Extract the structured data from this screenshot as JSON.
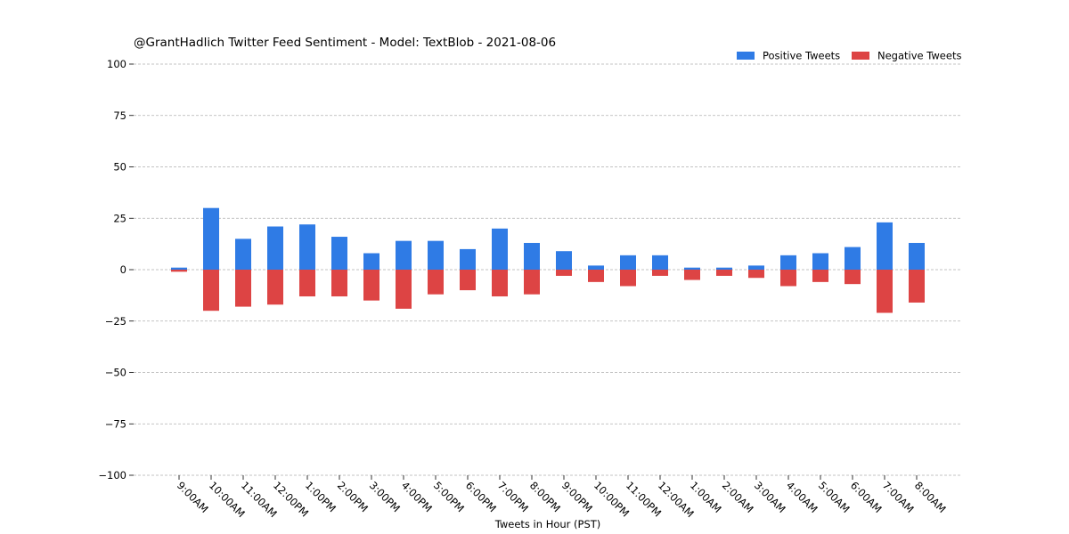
{
  "chart_data": {
    "type": "bar",
    "title": "@GrantHadlich Twitter Feed Sentiment - Model: TextBlob - 2021-08-06",
    "xlabel": "Tweets in Hour (PST)",
    "ylabel": "",
    "ylim": [
      -100,
      100
    ],
    "yticks": [
      100,
      75,
      50,
      25,
      0,
      -25,
      -50,
      -75,
      -100
    ],
    "ytick_labels": [
      "100",
      "75",
      "50",
      "25",
      "0",
      "−25",
      "−50",
      "−75",
      "−100"
    ],
    "grid": true,
    "legend_position": "top-right",
    "categories": [
      "9:00AM",
      "10:00AM",
      "11:00AM",
      "12:00PM",
      "1:00PM",
      "2:00PM",
      "3:00PM",
      "4:00PM",
      "5:00PM",
      "6:00PM",
      "7:00PM",
      "8:00PM",
      "9:00PM",
      "10:00PM",
      "11:00PM",
      "12:00AM",
      "1:00AM",
      "2:00AM",
      "3:00AM",
      "4:00AM",
      "5:00AM",
      "6:00AM",
      "7:00AM",
      "8:00AM"
    ],
    "series": [
      {
        "name": "Positive Tweets",
        "color": "#2f7be5",
        "values": [
          1,
          30,
          15,
          21,
          22,
          16,
          8,
          14,
          14,
          10,
          20,
          13,
          9,
          2,
          7,
          7,
          1,
          1,
          2,
          7,
          8,
          11,
          23,
          13
        ]
      },
      {
        "name": "Negative Tweets",
        "color": "#dd4444",
        "values": [
          -1,
          -20,
          -18,
          -17,
          -13,
          -13,
          -15,
          -19,
          -12,
          -10,
          -13,
          -12,
          -3,
          -6,
          -8,
          -3,
          -5,
          -3,
          -4,
          -8,
          -6,
          -7,
          -21,
          -16
        ]
      }
    ]
  }
}
